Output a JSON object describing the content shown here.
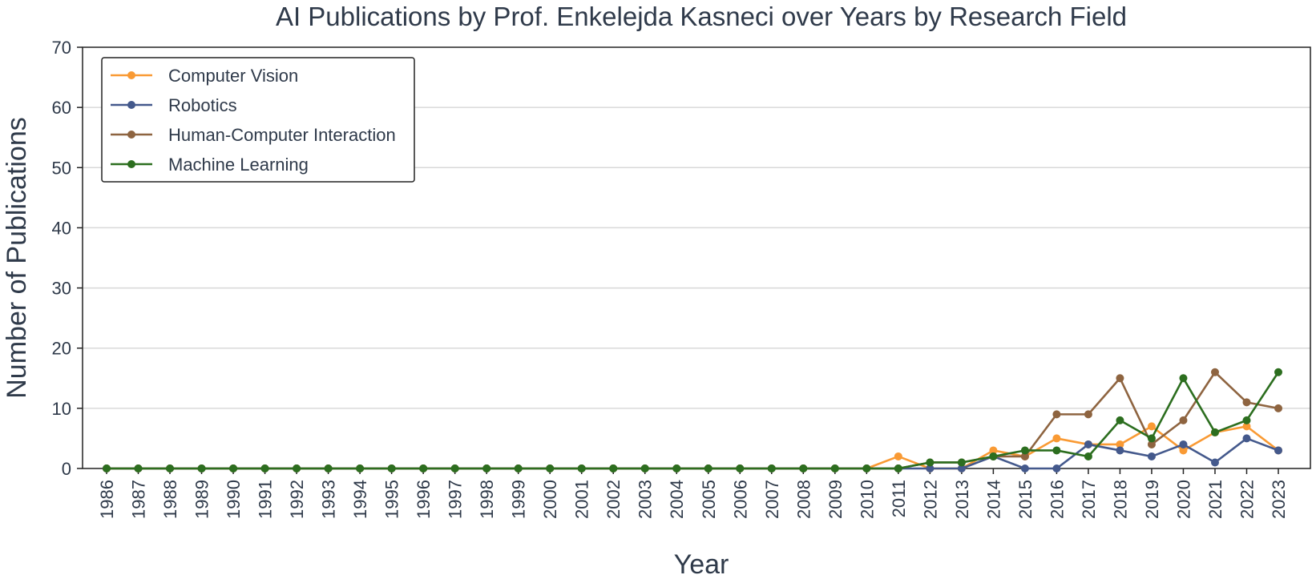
{
  "chart_data": {
    "type": "line",
    "title": "AI Publications by Prof. Enkelejda Kasneci over Years by Research Field",
    "xlabel": "Year",
    "ylabel": "Number of Publications",
    "ylim": [
      0,
      70
    ],
    "yticks": [
      0,
      10,
      20,
      30,
      40,
      50,
      60,
      70
    ],
    "grid": true,
    "legend_position": "top-left",
    "x": [
      "1986",
      "1987",
      "1988",
      "1989",
      "1990",
      "1991",
      "1992",
      "1993",
      "1994",
      "1995",
      "1996",
      "1997",
      "1998",
      "1999",
      "2000",
      "2001",
      "2002",
      "2003",
      "2004",
      "2005",
      "2006",
      "2007",
      "2008",
      "2009",
      "2010",
      "2011",
      "2012",
      "2013",
      "2014",
      "2015",
      "2016",
      "2017",
      "2018",
      "2019",
      "2020",
      "2021",
      "2022",
      "2023"
    ],
    "series": [
      {
        "name": "Computer Vision",
        "color": "#f99a34",
        "values": [
          0,
          0,
          0,
          0,
          0,
          0,
          0,
          0,
          0,
          0,
          0,
          0,
          0,
          0,
          0,
          0,
          0,
          0,
          0,
          0,
          0,
          0,
          0,
          0,
          0,
          2,
          0,
          0,
          3,
          2,
          5,
          4,
          4,
          7,
          3,
          6,
          7,
          3
        ]
      },
      {
        "name": "Robotics",
        "color": "#44598c",
        "values": [
          0,
          0,
          0,
          0,
          0,
          0,
          0,
          0,
          0,
          0,
          0,
          0,
          0,
          0,
          0,
          0,
          0,
          0,
          0,
          0,
          0,
          0,
          0,
          0,
          0,
          0,
          0,
          0,
          2,
          0,
          0,
          4,
          3,
          2,
          4,
          1,
          5,
          3
        ]
      },
      {
        "name": "Human-Computer Interaction",
        "color": "#8e6440",
        "values": [
          0,
          0,
          0,
          0,
          0,
          0,
          0,
          0,
          0,
          0,
          0,
          0,
          0,
          0,
          0,
          0,
          0,
          0,
          0,
          0,
          0,
          0,
          0,
          0,
          0,
          0,
          1,
          1,
          2,
          2,
          9,
          9,
          15,
          4,
          8,
          16,
          11,
          10
        ]
      },
      {
        "name": "Machine Learning",
        "color": "#2c6e1f",
        "values": [
          0,
          0,
          0,
          0,
          0,
          0,
          0,
          0,
          0,
          0,
          0,
          0,
          0,
          0,
          0,
          0,
          0,
          0,
          0,
          0,
          0,
          0,
          0,
          0,
          0,
          0,
          1,
          1,
          2,
          3,
          3,
          2,
          8,
          5,
          15,
          6,
          8,
          16
        ]
      }
    ]
  }
}
